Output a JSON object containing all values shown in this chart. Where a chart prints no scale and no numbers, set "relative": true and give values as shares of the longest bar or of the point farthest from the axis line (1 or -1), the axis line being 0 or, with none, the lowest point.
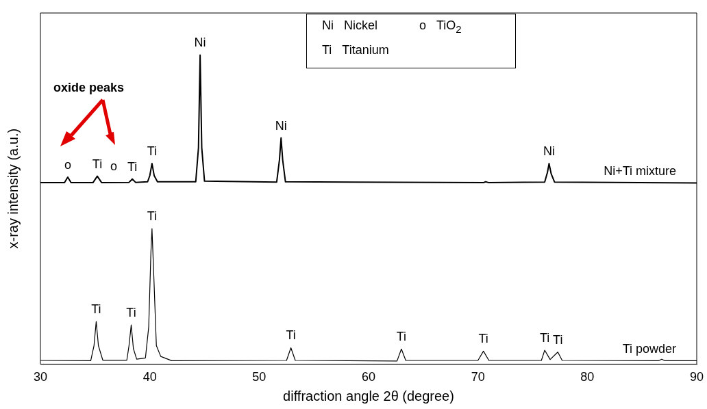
{
  "chart_data": {
    "type": "line",
    "relative": true,
    "xlabel": "diffraction angle 2θ (degree)",
    "ylabel": "x-ray intensity (a.u.)",
    "xlim": [
      30,
      90
    ],
    "xticks": [
      30,
      40,
      50,
      60,
      70,
      80,
      90
    ],
    "grid": false,
    "legend": false,
    "marker": "none",
    "line_style": "solid",
    "series": [
      {
        "name": "Ni+Ti mixture",
        "color": "#000000",
        "x": [
          30,
          32.2,
          32.5,
          32.8,
          34.8,
          35.2,
          35.6,
          38.1,
          38.4,
          38.7,
          39.8,
          40.0,
          40.2,
          40.4,
          40.7,
          44.2,
          44.45,
          44.6,
          44.75,
          45.0,
          51.6,
          51.85,
          52.0,
          52.15,
          52.4,
          70.5,
          70.7,
          71.0,
          76.1,
          76.35,
          76.5,
          76.7,
          77.0,
          90
        ],
        "values": [
          0.587,
          0.587,
          0.605,
          0.587,
          0.587,
          0.608,
          0.587,
          0.588,
          0.599,
          0.588,
          0.59,
          0.61,
          0.649,
          0.61,
          0.59,
          0.59,
          0.7,
          1.0,
          0.7,
          0.592,
          0.589,
          0.66,
          0.732,
          0.66,
          0.59,
          0.587,
          0.59,
          0.587,
          0.589,
          0.62,
          0.649,
          0.615,
          0.589,
          0.586
        ]
      },
      {
        "name": "Ti powder",
        "color": "#000000",
        "x": [
          30,
          34.6,
          34.9,
          35.1,
          35.3,
          35.7,
          37.9,
          38.1,
          38.3,
          38.5,
          38.8,
          39.6,
          39.9,
          40.1,
          40.2,
          40.35,
          40.6,
          41.0,
          42,
          52.5,
          52.9,
          53.3,
          62.6,
          63.0,
          63.4,
          70.0,
          70.5,
          71.0,
          75.8,
          76.1,
          76.6,
          77.3,
          77.7,
          86.5,
          86.8,
          87.1,
          90
        ],
        "values": [
          0.012,
          0.011,
          0.06,
          0.138,
          0.06,
          0.013,
          0.013,
          0.06,
          0.127,
          0.05,
          0.016,
          0.02,
          0.12,
          0.36,
          0.438,
          0.3,
          0.06,
          0.025,
          0.011,
          0.012,
          0.053,
          0.012,
          0.01,
          0.049,
          0.012,
          0.012,
          0.042,
          0.012,
          0.012,
          0.045,
          0.015,
          0.039,
          0.012,
          0.011,
          0.016,
          0.011,
          0.011
        ]
      }
    ],
    "annotations": [
      "Ni  Nickel",
      "o  TiO$_{2}$",
      "Ti  Titanium",
      "oxide peaks",
      {
        "text": "o",
        "x": 32.5,
        "y": 0.605
      },
      {
        "text": "Ti",
        "x": 35.2,
        "y": 0.608
      },
      {
        "text": "o",
        "x": 36.7,
        "y": 0.6
      },
      {
        "text": "Ti",
        "x": 38.4,
        "y": 0.599
      },
      {
        "text": "Ti",
        "x": 40.2,
        "y": 0.649
      },
      {
        "text": "Ni",
        "x": 44.6,
        "y": 1.0
      },
      {
        "text": "Ni",
        "x": 52.0,
        "y": 0.732
      },
      {
        "text": "Ni",
        "x": 76.5,
        "y": 0.649
      },
      {
        "text": "Ti",
        "x": 35.1,
        "y": 0.138
      },
      {
        "text": "Ti",
        "x": 38.3,
        "y": 0.127
      },
      {
        "text": "Ti",
        "x": 40.2,
        "y": 0.438
      },
      {
        "text": "Ti",
        "x": 52.9,
        "y": 0.053
      },
      {
        "text": "Ti",
        "x": 63.0,
        "y": 0.049
      },
      {
        "text": "Ti",
        "x": 70.5,
        "y": 0.042
      },
      {
        "text": "Ti",
        "x": 76.1,
        "y": 0.045
      },
      {
        "text": "Ti",
        "x": 77.3,
        "y": 0.039
      }
    ]
  }
}
